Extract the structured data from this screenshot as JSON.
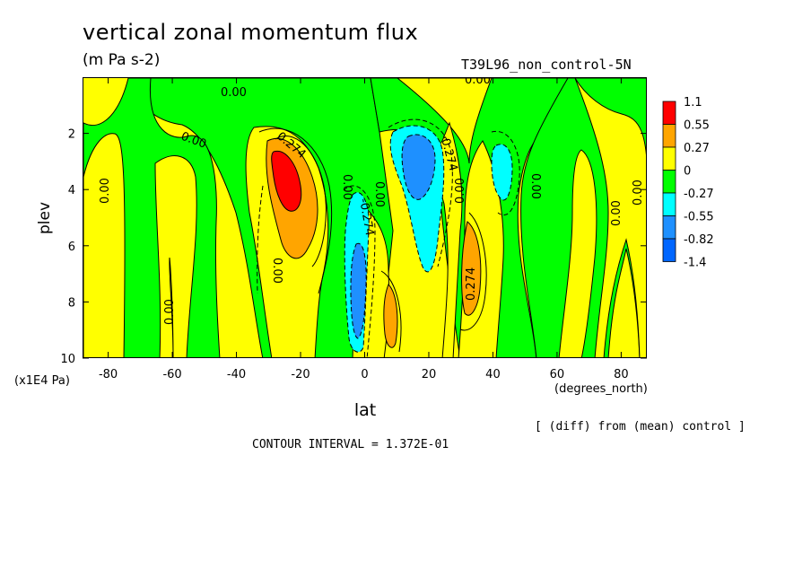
{
  "chart_data": {
    "type": "heatmap",
    "title": "vertical zonal momentum flux",
    "subtitle": "(m Pa s-2)",
    "run_label": "T39L96_non_control-5N",
    "xlabel": "lat",
    "ylabel": "plev",
    "x_unit": "(degrees_north)",
    "y_unit": "(x1E4 Pa)",
    "xlim": [
      -88,
      88
    ],
    "ylim": [
      10,
      0
    ],
    "x_ticks": [
      -80,
      -60,
      -40,
      -20,
      0,
      20,
      40,
      60,
      80
    ],
    "y_ticks": [
      2,
      4,
      6,
      8,
      10
    ],
    "colorbar": {
      "levels": [
        "1.1",
        "0.55",
        "0.27",
        "0",
        "-0.27",
        "-0.55",
        "-0.82",
        "-1.4"
      ],
      "colors": [
        "#ff0000",
        "#ffa500",
        "#ffff00",
        "#00ff00",
        "#00ffff",
        "#1e90ff",
        "#0066ff"
      ]
    },
    "contour_labels": [
      "0.00",
      "0.274",
      "-0.274"
    ],
    "features": [
      {
        "name": "positive maximum",
        "lat": -26,
        "plev": 3.5,
        "value": 1.1
      },
      {
        "name": "positive lobe",
        "lat": 33,
        "plev": 7,
        "value": 0.55
      },
      {
        "name": "positive lobe",
        "lat": 8,
        "plev": 8.6,
        "value": 0.55
      },
      {
        "name": "negative minimum",
        "lat": 17,
        "plev": 3.5,
        "value": -0.82
      },
      {
        "name": "negative minimum",
        "lat": -2,
        "plev": 8.2,
        "value": -0.82
      },
      {
        "name": "negative lobe",
        "lat": 43,
        "plev": 3.2,
        "value": -0.27
      }
    ],
    "grid": false,
    "legend": "right"
  },
  "footer": {
    "interval": "CONTOUR INTERVAL = 1.372E-01",
    "note": "[ (diff) from (mean) control ]"
  }
}
